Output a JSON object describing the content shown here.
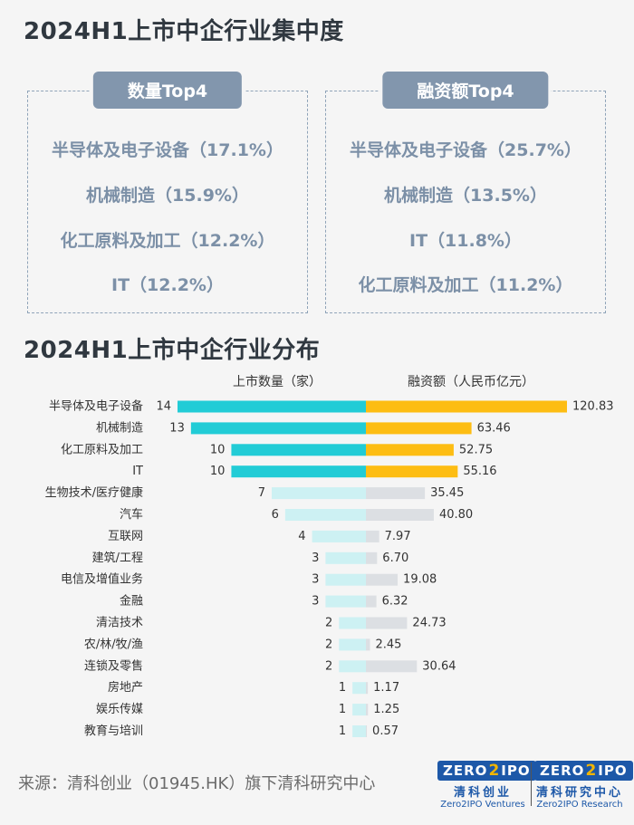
{
  "title_top": "2024H1上市中企行业集中度",
  "title_bottom": "2024H1上市中企行业分布",
  "left_box": {
    "label": "数量Top4",
    "items": [
      "半导体及电子设备（17.1%）",
      "机械制造（15.9%）",
      "化工原料及加工（12.2%）",
      "IT（12.2%）"
    ]
  },
  "right_box": {
    "label": "融资额Top4",
    "items": [
      "半导体及电子设备（25.7%）",
      "机械制造（13.5%）",
      "IT（11.8%）",
      "化工原料及加工（11.2%）"
    ]
  },
  "chart_data": {
    "type": "bar",
    "orientation": "horizontal-butterfly",
    "categories": [
      "半导体及电子设备",
      "机械制造",
      "化工原料及加工",
      "IT",
      "生物技术/医疗健康",
      "汽车",
      "互联网",
      "建筑/工程",
      "电信及增值业务",
      "金融",
      "清洁技术",
      "农/林/牧/渔",
      "连锁及零售",
      "房地产",
      "娱乐传媒",
      "教育与培训"
    ],
    "series": [
      {
        "name": "上市数量（家）",
        "values": [
          14,
          13,
          10,
          10,
          7,
          6,
          4,
          3,
          3,
          3,
          2,
          2,
          2,
          1,
          1,
          1
        ],
        "value_labels": [
          "14",
          "13",
          "10",
          "10",
          "7",
          "6",
          "4",
          "3",
          "3",
          "3",
          "2",
          "2",
          "2",
          "1",
          "1",
          "1"
        ]
      },
      {
        "name": "融资额（人民币亿元）",
        "values": [
          120.83,
          63.46,
          52.75,
          55.16,
          35.45,
          40.8,
          7.97,
          6.7,
          19.08,
          6.32,
          24.73,
          2.45,
          30.64,
          1.17,
          1.25,
          0.57
        ],
        "value_labels": [
          "120.83",
          "63.46",
          "52.75",
          "55.16",
          "35.45",
          "40.80",
          "7.97",
          "6.70",
          "19.08",
          "6.32",
          "24.73",
          "2.45",
          "30.64",
          "1.17",
          "1.25",
          "0.57"
        ]
      }
    ],
    "highlight_top_n": 4,
    "colors": {
      "count_highlight": "#22ccd6",
      "count_muted": "#cdf1f3",
      "amount_highlight": "#fdbd13",
      "amount_muted": "#dcdfe3"
    }
  },
  "footer": {
    "source": "来源：清科创业（01945.HK）旗下清科研究中心",
    "logo1": {
      "mark_left": "ZERO",
      "mark_two": "2",
      "mark_right": "IPO",
      "cn": "清科创业",
      "en": "Zero2IPO Ventures"
    },
    "logo2": {
      "mark_left": "ZERO",
      "mark_two": "2",
      "mark_right": "IPO",
      "cn": "清科研究中心",
      "en": "Zero2IPO Research"
    }
  }
}
